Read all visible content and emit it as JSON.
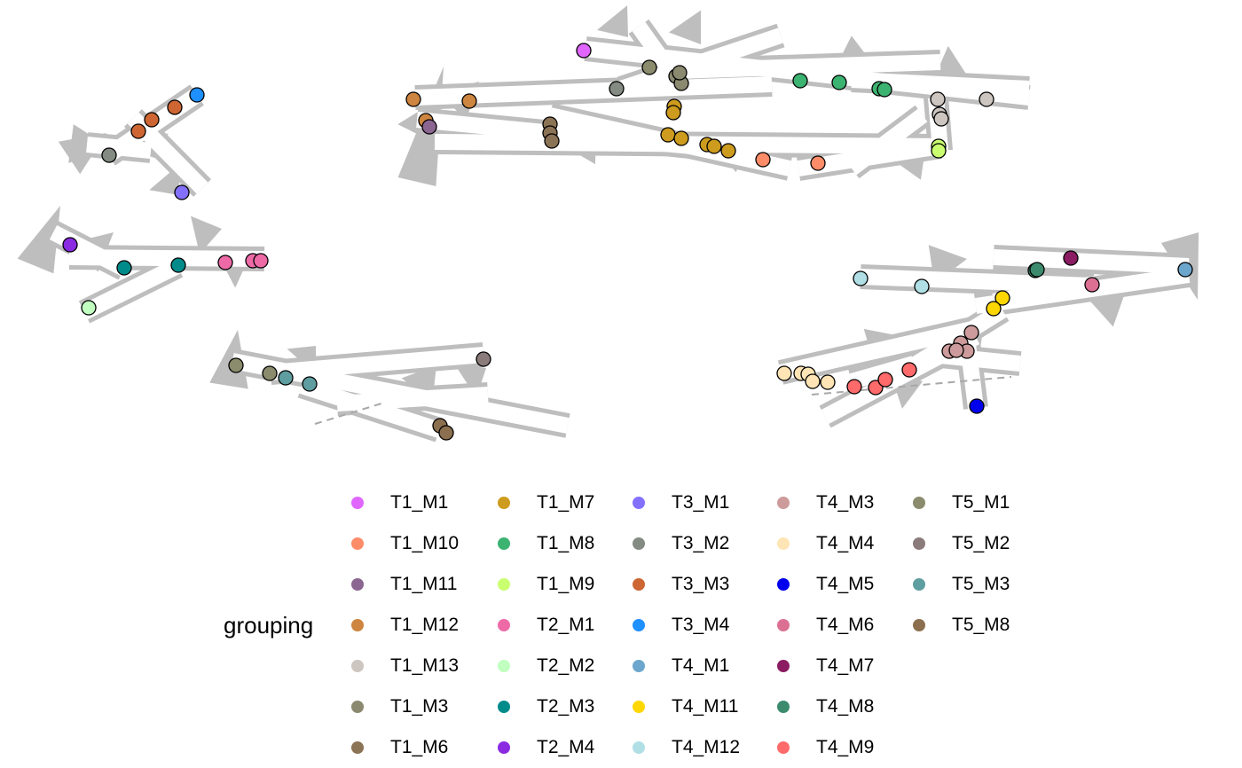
{
  "legend": {
    "title": "grouping",
    "columns": [
      [
        {
          "label": "T1_M1",
          "color": "#E066FF"
        },
        {
          "label": "T1_M10",
          "color": "#FF8C69"
        },
        {
          "label": "T1_M11",
          "color": "#8B6690"
        },
        {
          "label": "T1_M12",
          "color": "#CD853F"
        },
        {
          "label": "T1_M13",
          "color": "#CDC5BF"
        },
        {
          "label": "T1_M3",
          "color": "#8B8970"
        },
        {
          "label": "T1_M6",
          "color": "#8B7355"
        }
      ],
      [
        {
          "label": "T1_M7",
          "color": "#CD9B1D"
        },
        {
          "label": "T1_M8",
          "color": "#3CB371"
        },
        {
          "label": "T1_M9",
          "color": "#CAFF70"
        },
        {
          "label": "T2_M1",
          "color": "#EE6AA7"
        },
        {
          "label": "T2_M2",
          "color": "#C1FFC1"
        },
        {
          "label": "T2_M3",
          "color": "#008B8B"
        },
        {
          "label": "T2_M4",
          "color": "#8A2BE2"
        }
      ],
      [
        {
          "label": "T3_M1",
          "color": "#8470FF"
        },
        {
          "label": "T3_M2",
          "color": "#838B83"
        },
        {
          "label": "T3_M3",
          "color": "#CD6633"
        },
        {
          "label": "T3_M4",
          "color": "#1E90FF"
        },
        {
          "label": "T4_M1",
          "color": "#6CA6CD"
        },
        {
          "label": "T4_M11",
          "color": "#FFD700"
        },
        {
          "label": "T4_M12",
          "color": "#B0E0E6"
        }
      ],
      [
        {
          "label": "T4_M3",
          "color": "#CD9B9B"
        },
        {
          "label": "T4_M4",
          "color": "#FFE4B5"
        },
        {
          "label": "T4_M5",
          "color": "#0000EE"
        },
        {
          "label": "T4_M6",
          "color": "#DB7093"
        },
        {
          "label": "T4_M7",
          "color": "#8B1C62"
        },
        {
          "label": "T4_M8",
          "color": "#3D8B6E"
        },
        {
          "label": "T4_M9",
          "color": "#FF6A6A"
        }
      ],
      [
        {
          "label": "T5_M1",
          "color": "#8B8B6E"
        },
        {
          "label": "T5_M2",
          "color": "#8B7B7B"
        },
        {
          "label": "T5_M3",
          "color": "#5F9EA0"
        },
        {
          "label": "T5_M8",
          "color": "#8B6F4E"
        }
      ]
    ]
  }
}
